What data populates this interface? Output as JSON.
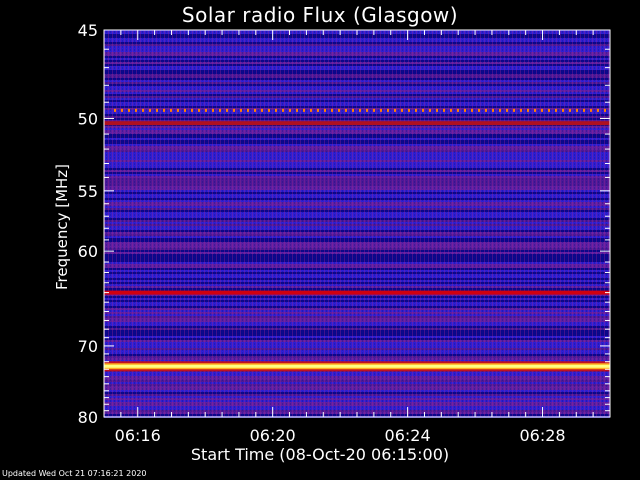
{
  "chart_data": {
    "type": "heatmap",
    "title": "Solar radio Flux (Glasgow)",
    "xlabel": "Start Time (08-Oct-20 06:15:00)",
    "ylabel": "Frequency [MHz]",
    "x_ticks": [
      "06:16",
      "06:20",
      "06:24",
      "06:28"
    ],
    "x_tick_minutes": [
      16,
      20,
      24,
      28
    ],
    "xlim_minutes": [
      15.0,
      30.0
    ],
    "y_ticks": [
      45,
      50,
      55,
      60,
      70,
      80
    ],
    "ylim": [
      45,
      80
    ],
    "y_scale": "reciprocal",
    "bright_bands_mhz": [
      {
        "freq": 49.5,
        "color": "#ff8000",
        "style": "dashed"
      },
      {
        "freq": 50.3,
        "color": "#b01020",
        "style": "line"
      },
      {
        "freq": 64.0,
        "color": "#d00010",
        "style": "line"
      },
      {
        "freq": 72.6,
        "color": "#ffff80",
        "style": "bright"
      }
    ],
    "colormap": [
      "#000080",
      "#3020e0",
      "#7020a0",
      "#c01020",
      "#ff8000",
      "#ffffff"
    ]
  },
  "footer": {
    "updated": "Updated Wed Oct 21 07:16:21 2020"
  }
}
